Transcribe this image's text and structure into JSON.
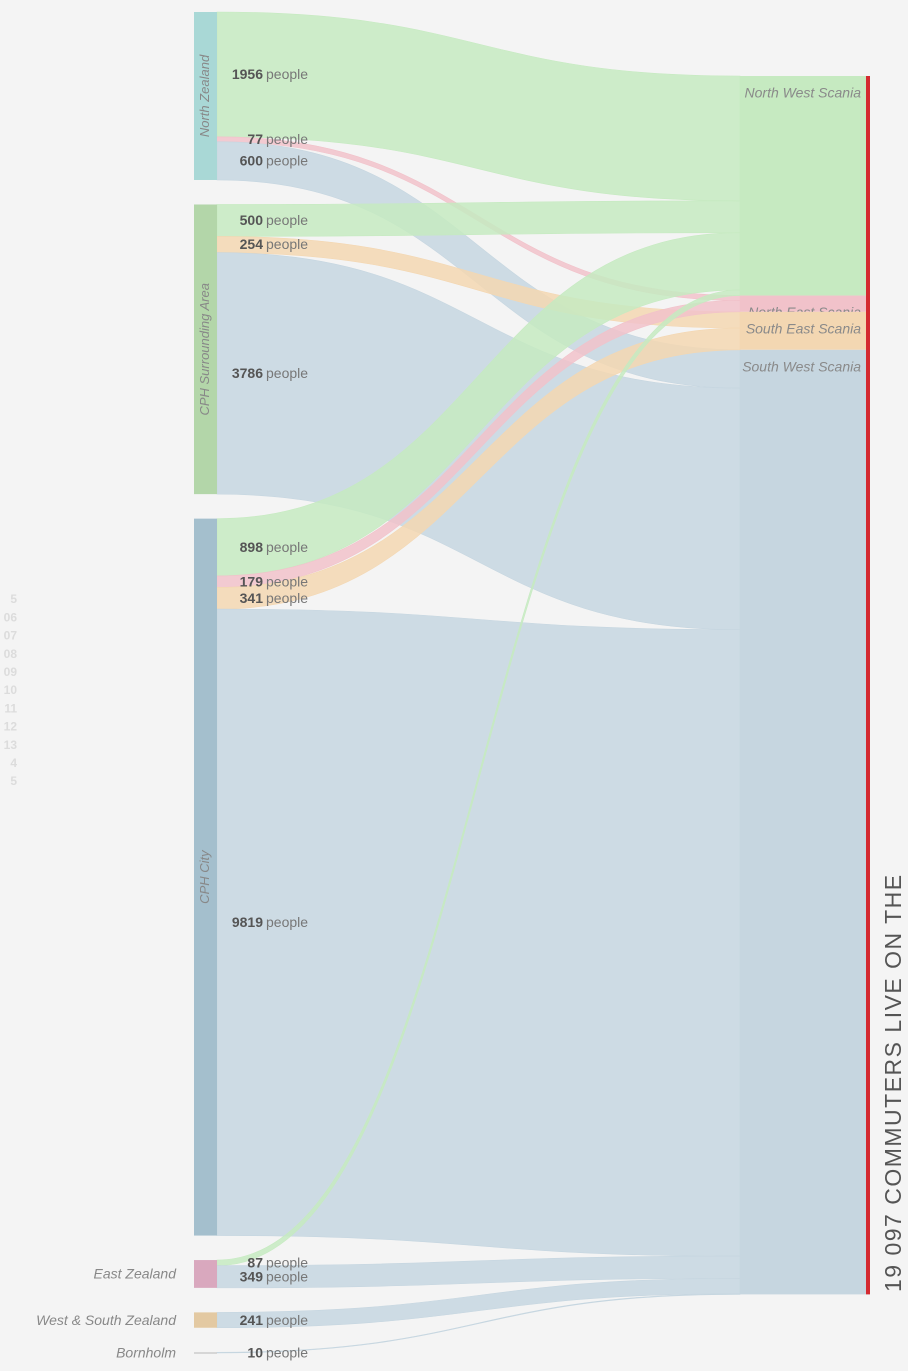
{
  "chart_data": {
    "type": "sankey",
    "title": "19 097 COMMUTERS LIVE ON THE",
    "unit": "people",
    "side_labels": [
      "5",
      "06",
      "07",
      "08",
      "09",
      "10",
      "11",
      "12",
      "13",
      "4",
      "5"
    ],
    "sources": [
      {
        "name": "North Zealand",
        "color": "#a9d8d6"
      },
      {
        "name": "CPH Surrounding Area",
        "color": "#b3d6a9"
      },
      {
        "name": "CPH City",
        "color": "#a4bfcd"
      },
      {
        "name": "East Zealand",
        "color": "#d9a8be"
      },
      {
        "name": "West & South Zealand",
        "color": "#e3c9a2"
      },
      {
        "name": "Bornholm",
        "color": "#cccccc"
      }
    ],
    "targets": [
      {
        "name": "North West Scania",
        "color": "#c6eac1"
      },
      {
        "name": "North East Scania",
        "color": "#f1c2ca"
      },
      {
        "name": "South East Scania",
        "color": "#f3d7b2"
      },
      {
        "name": "South West Scania",
        "color": "#c6d6e0"
      }
    ],
    "links": [
      {
        "source": "North Zealand",
        "target": "North West Scania",
        "value": 1956
      },
      {
        "source": "North Zealand",
        "target": "North East Scania",
        "value": 77
      },
      {
        "source": "North Zealand",
        "target": "South West Scania",
        "value": 600
      },
      {
        "source": "CPH Surrounding Area",
        "target": "North West Scania",
        "value": 500
      },
      {
        "source": "CPH Surrounding Area",
        "target": "South East Scania",
        "value": 254
      },
      {
        "source": "CPH Surrounding Area",
        "target": "South West Scania",
        "value": 3786
      },
      {
        "source": "CPH City",
        "target": "North West Scania",
        "value": 898
      },
      {
        "source": "CPH City",
        "target": "North East Scania",
        "value": 179
      },
      {
        "source": "CPH City",
        "target": "South East Scania",
        "value": 341
      },
      {
        "source": "CPH City",
        "target": "South West Scania",
        "value": 9819
      },
      {
        "source": "East Zealand",
        "target": "North West Scania",
        "value": 87
      },
      {
        "source": "East Zealand",
        "target": "South West Scania",
        "value": 349
      },
      {
        "source": "West & South Zealand",
        "target": "South West Scania",
        "value": 241
      },
      {
        "source": "Bornholm",
        "target": "South West Scania",
        "value": 10
      }
    ],
    "accent_color": "#d42a30"
  }
}
